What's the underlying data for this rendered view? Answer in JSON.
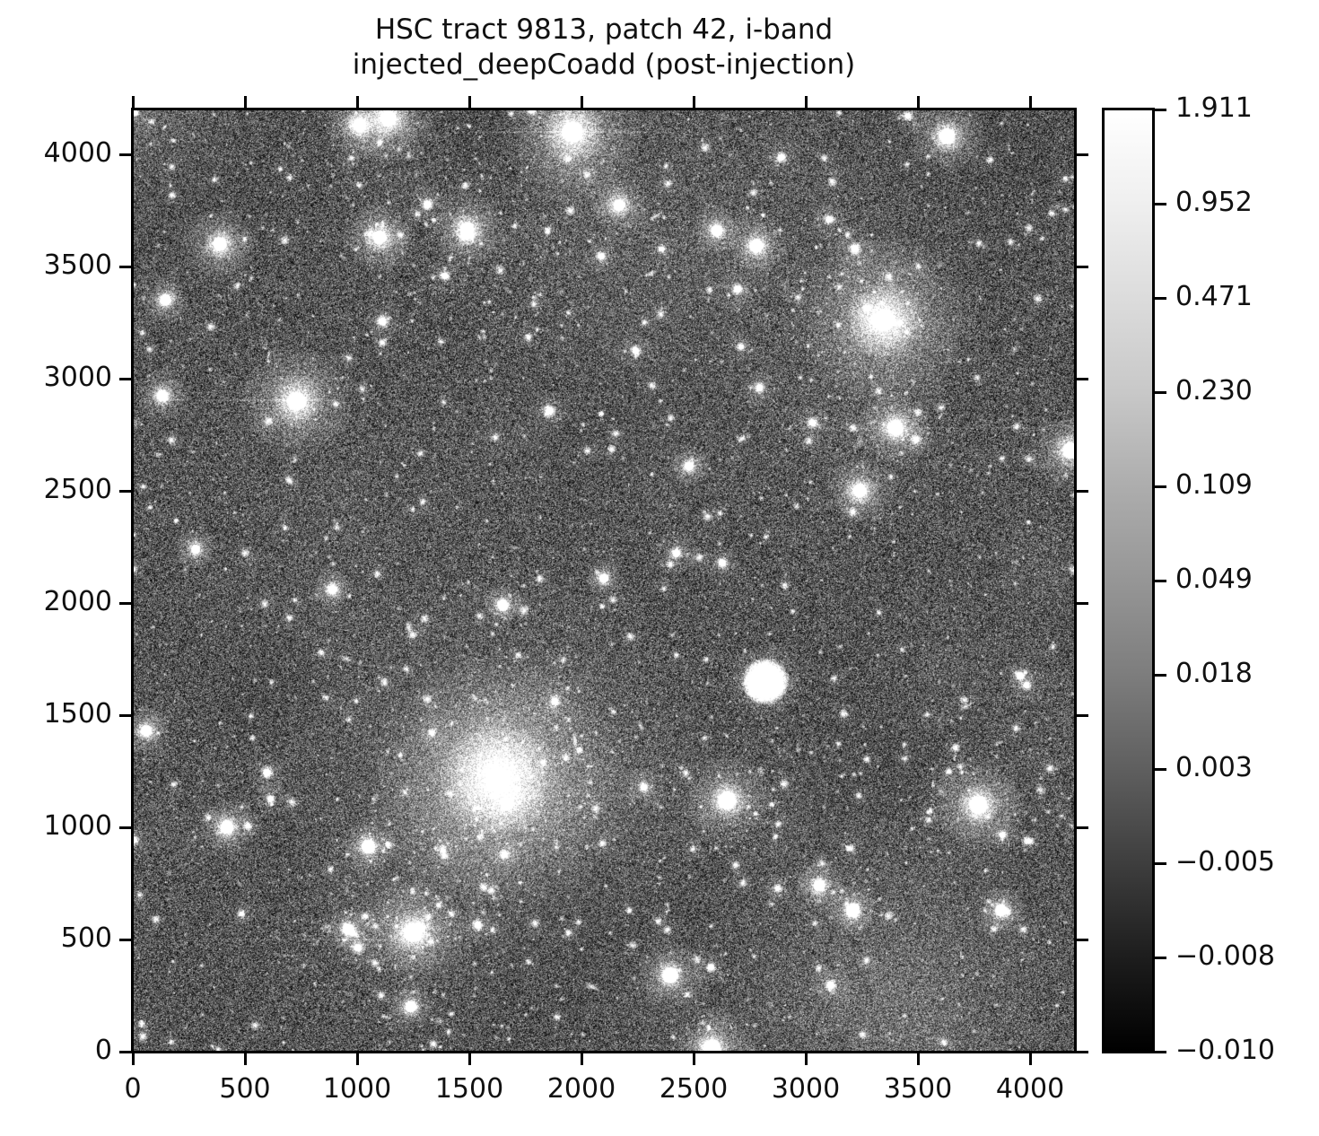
{
  "figure": {
    "title_line1": "HSC tract 9813, patch 42, i-band",
    "title_line2": "injected_deepCoadd (post-injection)",
    "background_color": "#ffffff",
    "text_color": "#111111"
  },
  "chart_data": {
    "type": "heatmap",
    "title": "HSC tract 9813, patch 42, i-band injected_deepCoadd (post-injection)",
    "xlabel": "",
    "ylabel": "",
    "x_ticks": [
      0,
      500,
      1000,
      1500,
      2000,
      2500,
      3000,
      3500,
      4000
    ],
    "y_ticks": [
      0,
      500,
      1000,
      1500,
      2000,
      2500,
      3000,
      3500,
      4000
    ],
    "axis_max": 4200,
    "xlim": [
      0,
      4200
    ],
    "ylim": [
      0,
      4200
    ],
    "grid": false,
    "colorbar": {
      "tick_labels": [
        "1.911",
        "0.952",
        "0.471",
        "0.230",
        "0.109",
        "0.049",
        "0.018",
        "0.003",
        "−0.005",
        "−0.008",
        "−0.010"
      ],
      "vmax": 1.911,
      "vmin": -0.01,
      "stretch": "asinh (equal-spaced nonlinear ticks)",
      "cmap": "grayscale black-to-white",
      "gradient_stops": [
        {
          "pos": 0,
          "color": "#ffffff"
        },
        {
          "pos": 10,
          "color": "#efefef"
        },
        {
          "pos": 20,
          "color": "#dcdcdc"
        },
        {
          "pos": 30,
          "color": "#c8c8c8"
        },
        {
          "pos": 40,
          "color": "#adadad"
        },
        {
          "pos": 50,
          "color": "#969696"
        },
        {
          "pos": 60,
          "color": "#7d7d7d"
        },
        {
          "pos": 70,
          "color": "#5f5f5f"
        },
        {
          "pos": 80,
          "color": "#3e3e3e"
        },
        {
          "pos": 90,
          "color": "#1d1d1d"
        },
        {
          "pos": 100,
          "color": "#000000"
        }
      ]
    },
    "bright_sources": [
      {
        "x": 1630,
        "y": 1215,
        "core": 10,
        "halo": 150,
        "halo2": 260
      },
      {
        "x": 3350,
        "y": 3260,
        "core": 9,
        "halo": 100
      },
      {
        "x": 1960,
        "y": 4100,
        "core": 9,
        "halo": 80
      },
      {
        "x": 1140,
        "y": 4160,
        "core": 7,
        "halo": 55
      },
      {
        "x": 1010,
        "y": 4130,
        "core": 6,
        "halo": 40
      },
      {
        "x": 730,
        "y": 2900,
        "core": 8,
        "halo": 65
      },
      {
        "x": 2820,
        "y": 1650,
        "core": 17,
        "halo": 45,
        "type": "disk"
      },
      {
        "x": 2650,
        "y": 1120,
        "core": 8,
        "halo": 50
      },
      {
        "x": 3770,
        "y": 1100,
        "core": 8,
        "halo": 55
      },
      {
        "x": 1250,
        "y": 530,
        "core": 8,
        "halo": 60
      },
      {
        "x": 388,
        "y": 3600,
        "core": 6,
        "halo": 42
      },
      {
        "x": 1100,
        "y": 3630,
        "core": 6,
        "halo": 44
      },
      {
        "x": 1490,
        "y": 3665,
        "core": 6,
        "halo": 44
      },
      {
        "x": 3630,
        "y": 4080,
        "core": 7,
        "halo": 45
      },
      {
        "x": 3400,
        "y": 2780,
        "core": 7,
        "halo": 45
      },
      {
        "x": 3240,
        "y": 2500,
        "core": 6,
        "halo": 40
      },
      {
        "x": 4180,
        "y": 2680,
        "core": 7,
        "halo": 45
      },
      {
        "x": 132,
        "y": 2925,
        "core": 5,
        "halo": 30
      },
      {
        "x": 145,
        "y": 3350,
        "core": 5,
        "halo": 28
      },
      {
        "x": 60,
        "y": 1430,
        "core": 5,
        "halo": 30
      },
      {
        "x": 420,
        "y": 1000,
        "core": 6,
        "halo": 34
      },
      {
        "x": 1050,
        "y": 915,
        "core": 6,
        "halo": 32
      },
      {
        "x": 2395,
        "y": 340,
        "core": 7,
        "halo": 40
      },
      {
        "x": 2580,
        "y": 15,
        "core": 8,
        "halo": 48
      },
      {
        "x": 1240,
        "y": 200,
        "core": 5,
        "halo": 28
      },
      {
        "x": 960,
        "y": 545,
        "core": 5,
        "halo": 26
      },
      {
        "x": 1650,
        "y": 1990,
        "core": 5,
        "halo": 26
      },
      {
        "x": 2100,
        "y": 2110,
        "core": 4,
        "halo": 22
      },
      {
        "x": 3060,
        "y": 740,
        "core": 5,
        "halo": 30
      },
      {
        "x": 3870,
        "y": 630,
        "core": 5,
        "halo": 28
      },
      {
        "x": 2168,
        "y": 3772,
        "core": 5,
        "halo": 34
      },
      {
        "x": 2780,
        "y": 3592,
        "core": 6,
        "halo": 36
      },
      {
        "x": 2604,
        "y": 3660,
        "core": 5,
        "halo": 28
      },
      {
        "x": 3210,
        "y": 630,
        "core": 6,
        "halo": 30
      },
      {
        "x": 890,
        "y": 2060,
        "core": 4,
        "halo": 24
      },
      {
        "x": 280,
        "y": 2240,
        "core": 4,
        "halo": 24
      },
      {
        "x": 2480,
        "y": 2610,
        "core": 4,
        "halo": 24
      }
    ],
    "streaks": [
      {
        "x1": 1450,
        "x2": 2450,
        "y": 4100,
        "a": 0.12
      },
      {
        "x1": 30,
        "x2": 950,
        "y": 2905,
        "a": 0.1
      },
      {
        "x1": 250,
        "x2": 1300,
        "y": 500,
        "a": 0.08
      },
      {
        "x1": 2900,
        "x2": 4200,
        "y": 2780,
        "a": 0.08
      },
      {
        "x1": 1000,
        "x2": 3100,
        "y": 1140,
        "a": 0.06
      }
    ],
    "clusters": [
      {
        "x": 1630,
        "y": 1215,
        "s": 380
      },
      {
        "x": 3350,
        "y": 3000,
        "s": 420
      },
      {
        "x": 2700,
        "y": 1100,
        "s": 380
      },
      {
        "x": 1250,
        "y": 3700,
        "s": 360
      },
      {
        "x": 1250,
        "y": 500,
        "s": 300
      },
      {
        "x": 3800,
        "y": 1100,
        "s": 300
      }
    ],
    "render": {
      "seed": 42,
      "noise_mean": 86,
      "noise_sigma": 46,
      "stars_tiny": 3000,
      "stars_small": 800,
      "stars_medium": 230,
      "stars_bright": 40,
      "galaxies_elliptical": 85,
      "cluster_fraction": 0.32
    }
  }
}
